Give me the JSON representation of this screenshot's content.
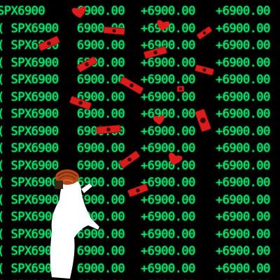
{
  "ticker": {
    "symbol": "SPX6900",
    "price": "6900.00",
    "change": "+6900.00",
    "partial_row_prefix": "("
  },
  "colors": {
    "background": "#000000",
    "ticker_text": "#19e36a",
    "heart": "#e11b1b",
    "bill": "#d91d1d",
    "figure": "#ffffff",
    "hat": "#b5481b"
  },
  "icons": [
    "heart-icon",
    "dollar-bill-icon",
    "ghost-figure-icon"
  ]
}
